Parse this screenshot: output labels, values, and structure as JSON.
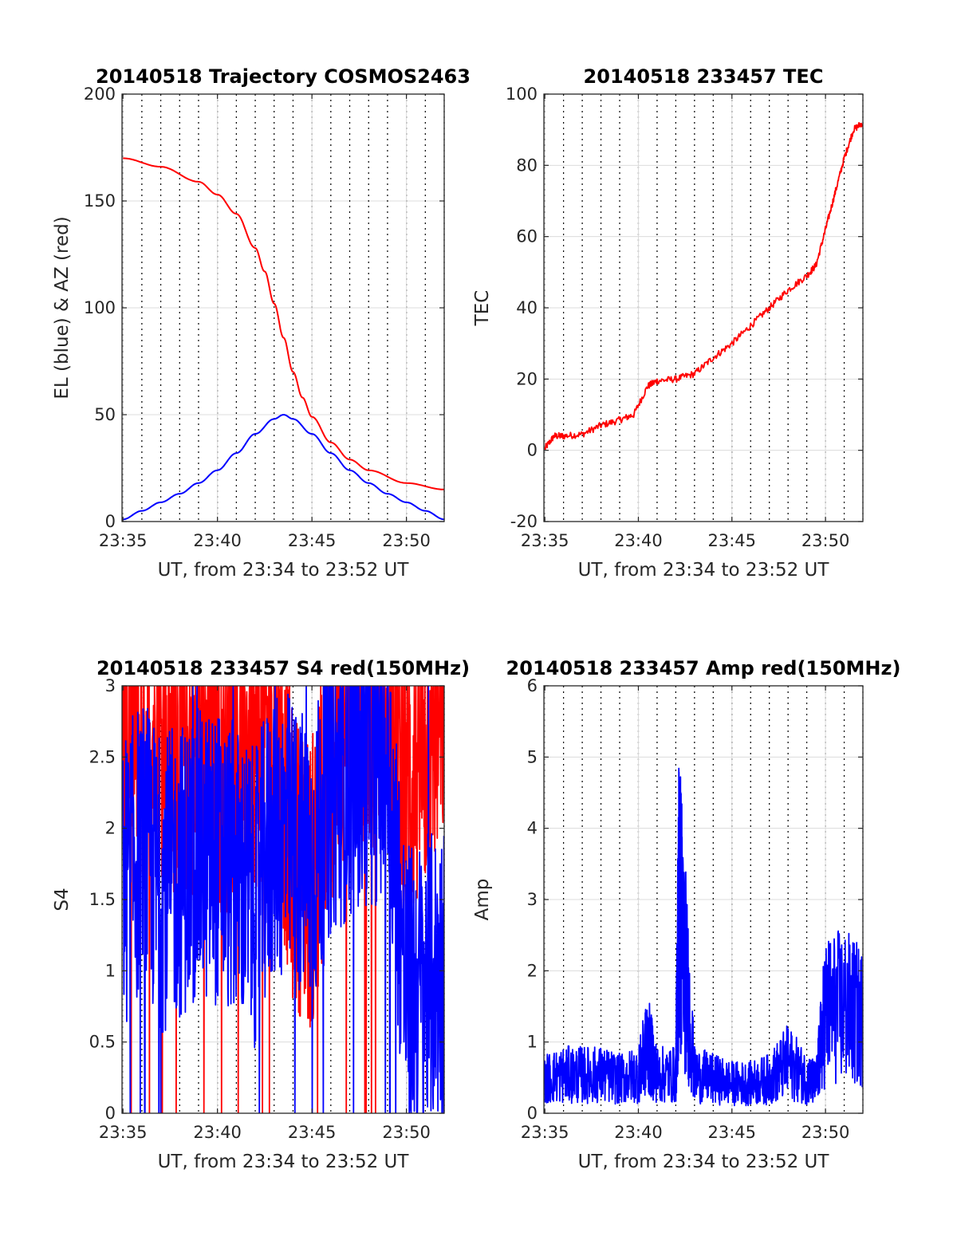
{
  "colors": {
    "red": "#ff0000",
    "blue": "#0000ff",
    "axis": "#262626",
    "grid": "#dcdcdc",
    "minor_grid": "#000000"
  },
  "chart_data": [
    {
      "type": "line",
      "title": "20140518 Trajectory COSMOS2463",
      "xlabel": "UT, from 23:34 to 23:52 UT",
      "ylabel": "EL (blue) & AZ (red)",
      "xlim": [
        "23:34:57",
        "23:52:00"
      ],
      "ylim": [
        0,
        200
      ],
      "xticks": [
        "23:35",
        "23:40",
        "23:45",
        "23:50"
      ],
      "yticks": [
        "0",
        "50",
        "100",
        "150",
        "200"
      ],
      "grid": true,
      "series": [
        {
          "color": "#ff0000",
          "x": [
            "23:35",
            "23:37",
            "23:39",
            "23:40",
            "23:41",
            "23:42",
            "23:42:30",
            "23:43",
            "23:43:30",
            "23:44",
            "23:44:30",
            "23:45",
            "23:46",
            "23:47",
            "23:48",
            "23:50",
            "23:52"
          ],
          "y": [
            170,
            166,
            159,
            153,
            144,
            128,
            117,
            102,
            86,
            70,
            58,
            49,
            37,
            29,
            24,
            18,
            15
          ]
        },
        {
          "color": "#0000ff",
          "x": [
            "23:35",
            "23:36",
            "23:37",
            "23:38",
            "23:39",
            "23:40",
            "23:41",
            "23:42",
            "23:43",
            "23:43:30",
            "23:44",
            "23:45",
            "23:46",
            "23:47",
            "23:48",
            "23:49",
            "23:50",
            "23:51",
            "23:52"
          ],
          "y": [
            1,
            5,
            9,
            13,
            18,
            24,
            32,
            41,
            48,
            50,
            48,
            41,
            32,
            24,
            18,
            13,
            9,
            5,
            1
          ]
        }
      ]
    },
    {
      "type": "line",
      "title": "20140518 233457 TEC",
      "xlabel": "UT, from 23:34 to 23:52 UT",
      "ylabel": "TEC",
      "xlim": [
        "23:34:57",
        "23:52:00"
      ],
      "ylim": [
        -20,
        100
      ],
      "xticks": [
        "23:35",
        "23:40",
        "23:45",
        "23:50"
      ],
      "yticks": [
        "-20",
        "0",
        "20",
        "40",
        "60",
        "80",
        "100"
      ],
      "grid": true,
      "series": [
        {
          "color": "#ff0000",
          "x": [
            "23:35",
            "23:35:30",
            "23:36",
            "23:37",
            "23:38",
            "23:39",
            "23:39:45",
            "23:40:30",
            "23:41",
            "23:42",
            "23:43",
            "23:44",
            "23:45",
            "23:46",
            "23:47",
            "23:48",
            "23:49",
            "23:49:30",
            "23:50",
            "23:50:30",
            "23:51",
            "23:51:30",
            "23:52"
          ],
          "y": [
            0.5,
            4,
            4,
            4.5,
            7,
            8.5,
            10,
            18,
            19.5,
            20,
            21.5,
            26,
            30,
            35,
            40,
            45,
            49,
            52,
            62,
            72,
            82,
            90,
            92
          ]
        }
      ]
    },
    {
      "type": "line",
      "title": "20140518 233457 S4 red(150MHz)",
      "xlabel": "UT, from 23:34 to 23:52 UT",
      "ylabel": "S4",
      "xlim": [
        "23:34:57",
        "23:52:00"
      ],
      "ylim": [
        0,
        3
      ],
      "xticks": [
        "23:35",
        "23:40",
        "23:45",
        "23:50"
      ],
      "yticks": [
        "0",
        "0.5",
        "1",
        "1.5",
        "2",
        "2.5",
        "3"
      ],
      "grid": true,
      "series": [
        {
          "color": "#ff0000",
          "x": [
            "23:35",
            "23:36",
            "23:37",
            "23:38",
            "23:39",
            "23:40",
            "23:41",
            "23:42",
            "23:43",
            "23:44",
            "23:45",
            "23:46",
            "23:47",
            "23:48",
            "23:49",
            "23:50",
            "23:51",
            "23:52"
          ],
          "y": [
            2.8,
            2.6,
            2.7,
            2.5,
            2.6,
            2.4,
            2.5,
            2.6,
            2.7,
            1.8,
            1.6,
            2.5,
            2.7,
            2.9,
            2.9,
            2.3,
            2.5,
            2.9
          ]
        },
        {
          "color": "#0000ff",
          "x": [
            "23:35",
            "23:36",
            "23:37",
            "23:38",
            "23:39",
            "23:40",
            "23:41",
            "23:42",
            "23:43",
            "23:44",
            "23:45",
            "23:46",
            "23:47",
            "23:48",
            "23:49",
            "23:50",
            "23:51",
            "23:52"
          ],
          "y": [
            1.6,
            1.9,
            1.6,
            1.7,
            1.8,
            1.8,
            1.7,
            1.5,
            2.0,
            1.9,
            1.7,
            2.3,
            2.4,
            2.5,
            2.5,
            0.85,
            0.9,
            1.0
          ]
        }
      ]
    },
    {
      "type": "line",
      "title": "20140518 233457 Amp red(150MHz)",
      "xlabel": "UT, from 23:34 to 23:52 UT",
      "ylabel": "Amp",
      "xlim": [
        "23:34:57",
        "23:52:00"
      ],
      "ylim": [
        0,
        6
      ],
      "xticks": [
        "23:35",
        "23:40",
        "23:45",
        "23:50"
      ],
      "yticks": [
        "0",
        "1",
        "2",
        "3",
        "4",
        "5",
        "6"
      ],
      "grid": true,
      "series": [
        {
          "color": "#0000ff",
          "x": [
            "23:35",
            "23:36",
            "23:37",
            "23:38",
            "23:39",
            "23:40",
            "23:40:30",
            "23:41",
            "23:42",
            "23:42:10",
            "23:42:20",
            "23:43",
            "23:44",
            "23:45",
            "23:46",
            "23:47",
            "23:48",
            "23:49",
            "23:49:30",
            "23:50",
            "23:51",
            "23:52"
          ],
          "y": [
            0.8,
            0.9,
            0.9,
            0.9,
            0.8,
            0.9,
            1.6,
            0.9,
            0.9,
            5.0,
            4.3,
            0.9,
            0.8,
            0.7,
            0.7,
            0.8,
            1.2,
            0.8,
            0.7,
            2.4,
            2.5,
            2.2
          ]
        }
      ]
    }
  ]
}
